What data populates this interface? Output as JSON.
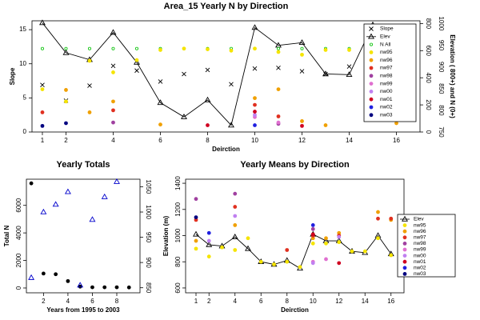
{
  "chart_data": [
    {
      "type": "line",
      "title": "Area_15 Yearly N by Direction",
      "xlabel": "Deirction",
      "ylabel": "Slope",
      "y2label": "Elevation ( 800+) and N (0+)",
      "x": [
        1,
        2,
        3,
        4,
        5,
        6,
        7,
        8,
        9,
        10,
        11,
        12,
        13,
        14,
        15,
        16
      ],
      "xlim": [
        0.56,
        17
      ],
      "xticks": [
        1,
        2,
        4,
        6,
        8,
        10,
        12,
        14,
        16
      ],
      "ylim": [
        0,
        16.3
      ],
      "yticks": [
        0,
        5,
        10,
        15
      ],
      "y2lim": [
        0,
        820
      ],
      "y2ticks": [
        0,
        200,
        400,
        600,
        800
      ],
      "y2ticks_outer": [
        {
          "value": 0,
          "label": "750"
        },
        {
          "value": 160,
          "label": "800"
        },
        {
          "value": 320,
          "label": "850"
        },
        {
          "value": 480,
          "label": "900"
        },
        {
          "value": 640,
          "label": "950"
        },
        {
          "value": 800,
          "label": "1000"
        }
      ],
      "legend": "top right",
      "series": [
        {
          "name": "Slope",
          "color": "#000000",
          "marker": "x",
          "values": [
            6.9,
            4.6,
            6.8,
            9.7,
            9.0,
            7.4,
            8.5,
            9.1,
            7.0,
            9.3,
            9.4,
            8.9,
            8.5,
            9.6,
            9.8,
            7.6
          ]
        },
        {
          "name": "Elev",
          "color": "#000000",
          "marker": "triangle",
          "line": true,
          "axis": "y2",
          "values": [
            805,
            584,
            533,
            734,
            513,
            216,
            111,
            236,
            50,
            770,
            639,
            659,
            428,
            423,
            790,
            392
          ]
        },
        {
          "name": "N All",
          "color": "#00c000",
          "marker": "circle",
          "axis": "y2",
          "values": [
            615,
            615,
            615,
            615,
            615,
            615,
            615,
            615,
            615,
            615,
            615,
            615,
            615,
            615,
            615,
            615
          ]
        },
        {
          "name": "nw95",
          "color": "#f5e400",
          "marker": "dot",
          "axis": "y2",
          "values": [
            315,
            225,
            525,
            440,
            530,
            605,
            615,
            610,
            600,
            615,
            590,
            570,
            605,
            605,
            500,
            590
          ]
        },
        {
          "name": "nw96",
          "color": "#f0a000",
          "marker": "dot",
          "axis": "y2",
          "values": [
            null,
            310,
            145,
            225,
            null,
            55,
            null,
            null,
            null,
            250,
            315,
            80,
            50,
            null,
            145,
            65
          ]
        },
        {
          "name": "nw97",
          "color": "#e03020",
          "marker": "dot",
          "axis": "y2",
          "values": [
            145,
            null,
            null,
            160,
            null,
            null,
            null,
            null,
            null,
            200,
            115,
            null,
            null,
            null,
            null,
            null
          ]
        },
        {
          "name": "nw98",
          "color": "#a040a0",
          "marker": "dot",
          "axis": "y2",
          "values": [
            null,
            null,
            null,
            70,
            null,
            null,
            null,
            null,
            null,
            null,
            60,
            null,
            null,
            null,
            null,
            null
          ]
        },
        {
          "name": "nw99",
          "color": "#e070d0",
          "marker": "dot",
          "axis": "y2",
          "values": [
            null,
            null,
            null,
            null,
            null,
            null,
            null,
            null,
            null,
            110,
            70,
            null,
            null,
            null,
            null,
            null
          ]
        },
        {
          "name": "nw00",
          "color": "#c080f0",
          "marker": "dot",
          "axis": "y2",
          "values": [
            null,
            null,
            null,
            null,
            null,
            null,
            null,
            null,
            null,
            125,
            null,
            null,
            null,
            null,
            null,
            null
          ]
        },
        {
          "name": "nw01",
          "color": "#d00020",
          "marker": "dot",
          "axis": "y2",
          "values": [
            null,
            null,
            null,
            null,
            null,
            null,
            null,
            50,
            null,
            150,
            null,
            45,
            null,
            null,
            null,
            null
          ]
        },
        {
          "name": "nw02",
          "color": "#2020e0",
          "marker": "dot",
          "axis": "y2",
          "values": [
            null,
            null,
            null,
            null,
            null,
            null,
            null,
            null,
            null,
            50,
            null,
            null,
            null,
            null,
            null,
            null
          ]
        },
        {
          "name": "nw03",
          "color": "#000080",
          "marker": "dot",
          "axis": "y2",
          "values": [
            45,
            65,
            null,
            null,
            null,
            null,
            null,
            null,
            null,
            null,
            null,
            null,
            null,
            null,
            null,
            null
          ]
        }
      ]
    },
    {
      "type": "scatter",
      "title": "Yearly Totals",
      "xlabel": "Years from 1995 to 2003",
      "ylabel": "Total N",
      "x": [
        1,
        2,
        3,
        4,
        5,
        6,
        7,
        8,
        9
      ],
      "xlim": [
        0.6,
        9.9
      ],
      "xticks": [
        2,
        4,
        6,
        8
      ],
      "ylim": [
        -350,
        7900
      ],
      "yticks": [
        0,
        2000,
        4000,
        6000
      ],
      "y2lim": [
        840,
        1065
      ],
      "y2ticks": [
        850,
        900,
        950,
        1000,
        1050
      ],
      "series": [
        {
          "color": "#000000",
          "marker": "dot",
          "values": [
            7600,
            1050,
            1000,
            500,
            100,
            50,
            50,
            50,
            40
          ]
        },
        {
          "color": "#0000cc",
          "marker": "triangle",
          "axis": "y2",
          "values": [
            870,
            1000,
            1015,
            1040,
            855,
            985,
            1030,
            1060,
            null
          ]
        }
      ]
    },
    {
      "type": "line",
      "title": "Yearly Means by Direction",
      "xlabel": "Deirction",
      "ylabel": "Elevation (m)",
      "x": [
        1,
        2,
        3,
        4,
        5,
        6,
        7,
        8,
        9,
        10,
        11,
        12,
        13,
        14,
        15,
        16
      ],
      "xlim": [
        0.2,
        17
      ],
      "xticks": [
        1,
        2,
        4,
        6,
        8,
        10,
        12,
        14,
        16
      ],
      "ylim": [
        563,
        1431
      ],
      "yticks": [
        600,
        800,
        1000,
        1200,
        1400
      ],
      "legend": "right",
      "series": [
        {
          "name": "Elev",
          "color": "#000000",
          "marker": "triangle",
          "line": true,
          "values": [
            1010,
            930,
            920,
            990,
            900,
            800,
            780,
            810,
            750,
            1010,
            960,
            960,
            880,
            870,
            1000,
            860
          ]
        },
        {
          "name": "nw95",
          "color": "#f5e400",
          "marker": "dot",
          "values": [
            900,
            840,
            910,
            890,
            980,
            800,
            780,
            800,
            760,
            940,
            940,
            950,
            880,
            880,
            980,
            850
          ]
        },
        {
          "name": "nw96",
          "color": "#f0a000",
          "marker": "dot",
          "values": [
            960,
            null,
            null,
            1080,
            null,
            null,
            null,
            null,
            null,
            980,
            980,
            1020,
            null,
            null,
            1180,
            1120
          ]
        },
        {
          "name": "nw97",
          "color": "#e03020",
          "marker": "dot",
          "values": [
            1120,
            null,
            null,
            1220,
            null,
            null,
            null,
            890,
            null,
            1000,
            null,
            1000,
            null,
            null,
            1130,
            1130
          ]
        },
        {
          "name": "nw98",
          "color": "#a040a0",
          "marker": "dot",
          "values": [
            1280,
            null,
            null,
            1320,
            null,
            null,
            null,
            null,
            null,
            1050,
            null,
            null,
            null,
            null,
            null,
            null
          ]
        },
        {
          "name": "nw99",
          "color": "#e070d0",
          "marker": "dot",
          "values": [
            null,
            null,
            null,
            null,
            null,
            null,
            null,
            null,
            null,
            800,
            820,
            null,
            null,
            null,
            null,
            null
          ]
        },
        {
          "name": "nw00",
          "color": "#c080f0",
          "marker": "dot",
          "values": [
            null,
            960,
            null,
            1150,
            null,
            null,
            null,
            null,
            null,
            790,
            null,
            990,
            null,
            null,
            null,
            null
          ]
        },
        {
          "name": "nw01",
          "color": "#d00020",
          "marker": "dot",
          "values": [
            null,
            null,
            null,
            null,
            null,
            null,
            null,
            null,
            null,
            1010,
            null,
            790,
            null,
            null,
            null,
            null
          ]
        },
        {
          "name": "nw02",
          "color": "#2020e0",
          "marker": "dot",
          "values": [
            null,
            1020,
            null,
            null,
            null,
            null,
            null,
            null,
            null,
            1080,
            null,
            null,
            null,
            null,
            null,
            null
          ]
        },
        {
          "name": "nw03",
          "color": "#000080",
          "marker": "dot",
          "values": [
            1140,
            null,
            null,
            null,
            null,
            null,
            null,
            null,
            null,
            null,
            null,
            null,
            null,
            null,
            null,
            null
          ]
        }
      ]
    }
  ]
}
